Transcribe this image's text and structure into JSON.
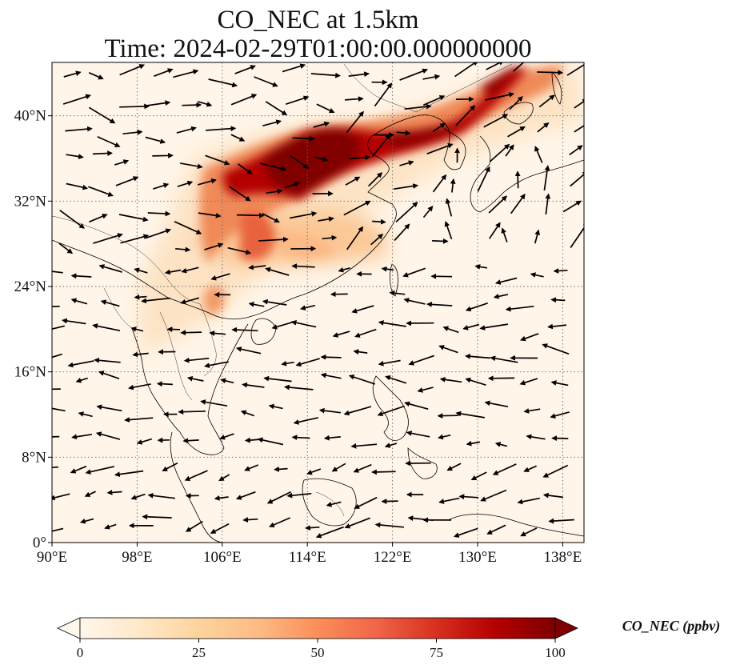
{
  "title_line1": "CO_NEC at 1.5km",
  "title_line2": "Time: 2024-02-29T01:00:00.000000000",
  "map": {
    "lon_range": [
      90,
      140
    ],
    "lat_range": [
      0,
      45
    ],
    "lon_ticks": [
      "90°E",
      "98°E",
      "106°E",
      "114°E",
      "122°E",
      "130°E",
      "138°E"
    ],
    "lat_ticks": [
      "0°",
      "8°N",
      "16°N",
      "24°N",
      "32°N",
      "40°N"
    ],
    "gridlines": true
  },
  "colorbar": {
    "label": "CO_NEC (ppbv)",
    "ticks": [
      "0",
      "25",
      "50",
      "75",
      "100"
    ],
    "range": [
      0,
      100
    ],
    "colormap": "OrRd",
    "colors": [
      "#fff7ec",
      "#fee8c8",
      "#fdd49e",
      "#fdbb84",
      "#fc8d59",
      "#ef6548",
      "#d7301f",
      "#b30000",
      "#7f0000"
    ],
    "extend": "both"
  }
}
